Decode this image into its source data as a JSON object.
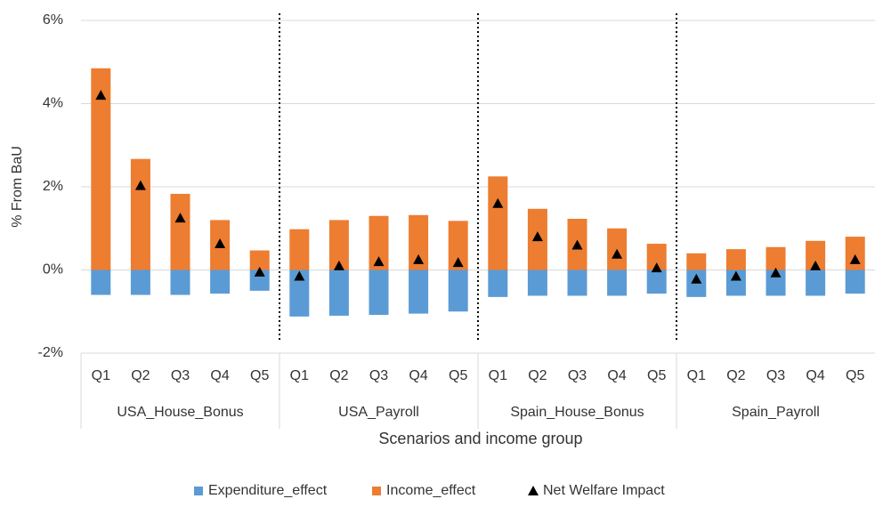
{
  "chart_data": {
    "type": "bar",
    "stacked": true,
    "y_label": "% From BaU",
    "x_label": "Scenarios and income group",
    "groups": [
      {
        "label": "USA_House_Bonus",
        "categories": [
          "Q1",
          "Q2",
          "Q3",
          "Q4",
          "Q5"
        ]
      },
      {
        "label": "USA_Payroll",
        "categories": [
          "Q1",
          "Q2",
          "Q3",
          "Q4",
          "Q5"
        ]
      },
      {
        "label": "Spain_House_Bonus",
        "categories": [
          "Q1",
          "Q2",
          "Q3",
          "Q4",
          "Q5"
        ]
      },
      {
        "label": "Spain_Payroll",
        "categories": [
          "Q1",
          "Q2",
          "Q3",
          "Q4",
          "Q5"
        ]
      }
    ],
    "series": [
      {
        "name": "Expenditure_effect",
        "type": "bar",
        "color": "#5b9bd5",
        "values": [
          -0.6,
          -0.6,
          -0.6,
          -0.57,
          -0.5,
          -1.12,
          -1.1,
          -1.08,
          -1.05,
          -1.0,
          -0.65,
          -0.62,
          -0.62,
          -0.62,
          -0.57,
          -0.65,
          -0.62,
          -0.62,
          -0.62,
          -0.57
        ]
      },
      {
        "name": "Income_effect",
        "type": "bar",
        "color": "#ed7d31",
        "values": [
          4.85,
          2.67,
          1.83,
          1.2,
          0.47,
          0.98,
          1.2,
          1.3,
          1.32,
          1.18,
          2.25,
          1.47,
          1.23,
          1.0,
          0.63,
          0.4,
          0.5,
          0.55,
          0.7,
          0.8
        ]
      },
      {
        "name": "Net Welfare Impact",
        "type": "scatter",
        "color": "#000000",
        "values": [
          4.2,
          2.03,
          1.25,
          0.63,
          -0.05,
          -0.15,
          0.1,
          0.2,
          0.25,
          0.18,
          1.6,
          0.8,
          0.6,
          0.38,
          0.05,
          -0.22,
          -0.15,
          -0.07,
          0.1,
          0.25
        ]
      }
    ],
    "ylim": [
      -2,
      6
    ],
    "yticks": [
      {
        "value": -2,
        "label": "-2%"
      },
      {
        "value": 0,
        "label": "0%"
      },
      {
        "value": 2,
        "label": "2%"
      },
      {
        "value": 4,
        "label": "4%"
      },
      {
        "value": 6,
        "label": "6%"
      }
    ],
    "grid": true,
    "legend": "bottom"
  }
}
